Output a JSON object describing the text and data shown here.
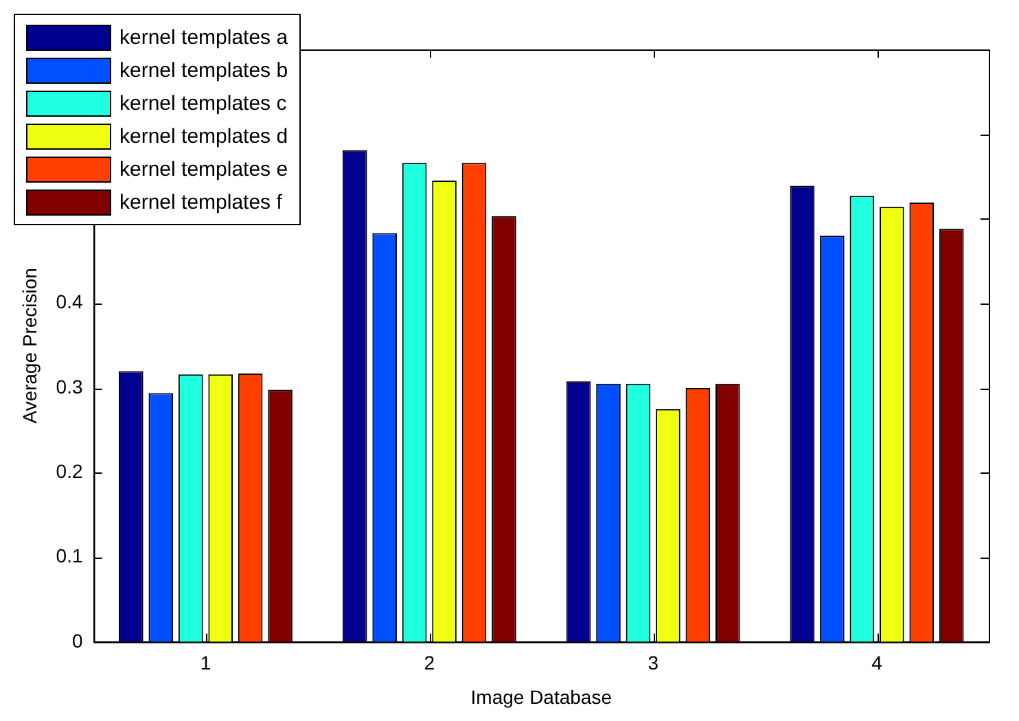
{
  "chart_data": {
    "type": "bar",
    "xlabel": "Image Database",
    "ylabel": "Average Precision",
    "categories": [
      "1",
      "2",
      "3",
      "4"
    ],
    "series": [
      {
        "name": "kernel templates a",
        "color": "#00008f",
        "values": [
          0.32,
          0.581,
          0.308,
          0.539
        ]
      },
      {
        "name": "kernel templates b",
        "color": "#0050ff",
        "values": [
          0.294,
          0.483,
          0.305,
          0.48
        ]
      },
      {
        "name": "kernel templates c",
        "color": "#20ffdf",
        "values": [
          0.316,
          0.566,
          0.305,
          0.527
        ]
      },
      {
        "name": "kernel templates d",
        "color": "#f0ff10",
        "values": [
          0.316,
          0.545,
          0.275,
          0.514
        ]
      },
      {
        "name": "kernel templates e",
        "color": "#ff4000",
        "values": [
          0.317,
          0.566,
          0.3,
          0.519
        ]
      },
      {
        "name": "kernel templates f",
        "color": "#800000",
        "values": [
          0.298,
          0.503,
          0.305,
          0.488
        ]
      }
    ],
    "ylim": [
      0,
      0.7
    ],
    "yticks": [
      0,
      0.1,
      0.2,
      0.3,
      0.4,
      {
        "value": 0.5,
        "label": null
      },
      {
        "value": 0.6,
        "label": null
      },
      {
        "value": 0.7,
        "label": null
      }
    ],
    "grid": false,
    "legend": "top left"
  }
}
